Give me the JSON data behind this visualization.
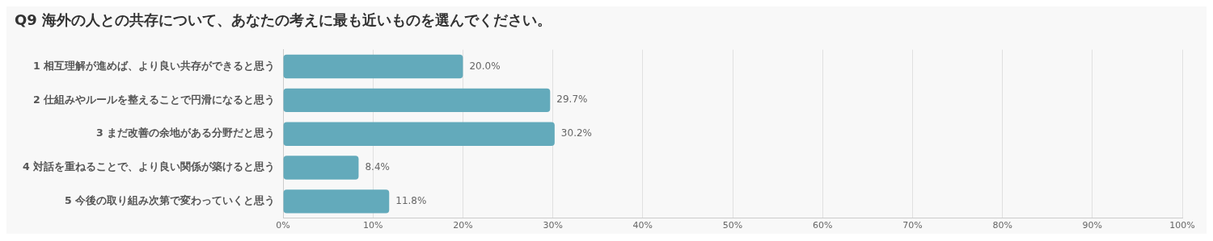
{
  "chart_data": {
    "type": "bar",
    "orientation": "horizontal",
    "title": "Q9 海外の人との共存について、あなたの考えに最も近いものを選んでください。",
    "categories": [
      "1 相互理解が進めば、より良い共存ができると思う",
      "2 仕組みやルールを整えることで円滑になると思う",
      "3 まだ改善の余地がある分野だと思う",
      "4 対話を重ねることで、より良い関係が築けると思う",
      "5 今後の取り組み次第で変わっていくと思う"
    ],
    "values": [
      20.0,
      29.7,
      30.2,
      8.4,
      11.8
    ],
    "value_labels": [
      "20.0%",
      "29.7%",
      "30.2%",
      "8.4%",
      "11.8%"
    ],
    "color": "#63aabb",
    "xlim": [
      0,
      100
    ],
    "xticks": [
      {
        "value": 0,
        "label": "0%"
      },
      {
        "value": 10,
        "label": "10%"
      },
      {
        "value": 20,
        "label": "20%"
      },
      {
        "value": 30,
        "label": "30%"
      },
      {
        "value": 40,
        "label": "40%"
      },
      {
        "value": 50,
        "label": "50%"
      },
      {
        "value": 60,
        "label": "60%"
      },
      {
        "value": 70,
        "label": "70%"
      },
      {
        "value": 80,
        "label": "80%"
      },
      {
        "value": 90,
        "label": "90%"
      },
      {
        "value": 100,
        "label": "100%"
      }
    ],
    "grid": "x"
  }
}
